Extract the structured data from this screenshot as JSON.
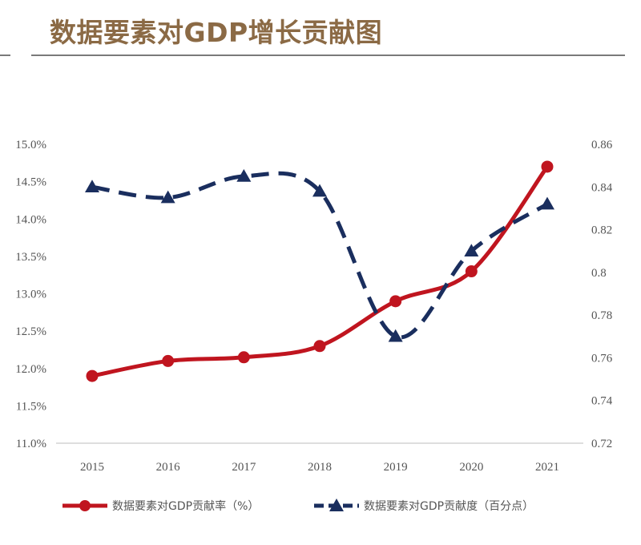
{
  "header": {
    "title": "数据要素对GDP增长贡献图"
  },
  "chart_data": {
    "type": "line",
    "categories": [
      "2015",
      "2016",
      "2017",
      "2018",
      "2019",
      "2020",
      "2021"
    ],
    "y_left": {
      "ylim": [
        11.0,
        15.0
      ],
      "ticks": [
        "11.0%",
        "11.5%",
        "12.0%",
        "12.5%",
        "13.0%",
        "13.5%",
        "14.0%",
        "14.5%",
        "15.0%"
      ],
      "tick_values": [
        11.0,
        11.5,
        12.0,
        12.5,
        13.0,
        13.5,
        14.0,
        14.5,
        15.0
      ]
    },
    "y_right": {
      "ylim": [
        0.72,
        0.86
      ],
      "ticks": [
        "0.72",
        "0.74",
        "0.76",
        "0.78",
        "0.8",
        "0.82",
        "0.84",
        "0.86"
      ],
      "tick_values": [
        0.72,
        0.74,
        0.76,
        0.78,
        0.8,
        0.82,
        0.84,
        0.86
      ]
    },
    "series": [
      {
        "name": "数据要素对GDP贡献率（%）",
        "axis": "left",
        "color": "#c0151f",
        "marker": "circle",
        "line_style": "solid",
        "values": [
          11.9,
          12.1,
          12.15,
          12.3,
          12.9,
          13.3,
          14.7
        ]
      },
      {
        "name": "数据要素对GDP贡献度（百分点）",
        "axis": "right",
        "color": "#1a2e5e",
        "marker": "triangle",
        "line_style": "dashed",
        "values": [
          0.84,
          0.835,
          0.845,
          0.838,
          0.77,
          0.81,
          0.832
        ]
      }
    ],
    "legend_position": "bottom",
    "grid": false
  }
}
